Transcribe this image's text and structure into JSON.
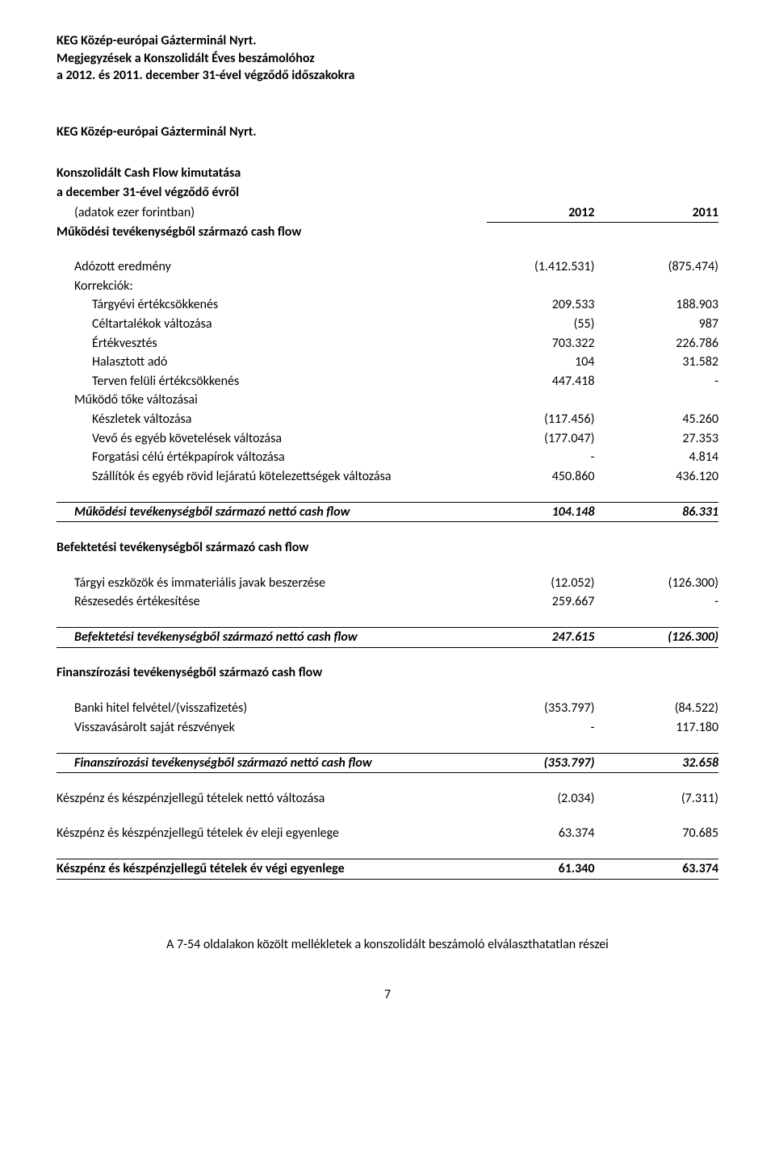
{
  "header": {
    "line1": "KEG Közép-európai Gázterminál Nyrt.",
    "line2": "Megjegyzések a Konszolidált Éves beszámolóhoz",
    "line3": "a 2012. és 2011. december 31-ével végződő időszakokra"
  },
  "title1": "KEG Közép-európai Gázterminál Nyrt.",
  "title2": "Konszolidált Cash Flow kimutatása",
  "subtitle2": "a december 31-ével végződő évről",
  "adatokNote": "(adatok ezer forintban)",
  "year2012": "2012",
  "year2011": "2011",
  "sections": {
    "operating": {
      "heading": "Működési tevékenységből származó cash flow",
      "rows": [
        {
          "label": "Adózott eredmény",
          "v2012": "(1.412.531)",
          "v2011": "(875.474)",
          "indent": 1
        },
        {
          "label": "Korrekciók:",
          "v2012": "",
          "v2011": "",
          "indent": 1
        },
        {
          "label": "Tárgyévi értékcsökkenés",
          "v2012": "209.533",
          "v2011": "188.903",
          "indent": 2
        },
        {
          "label": "Céltartalékok változása",
          "v2012": "(55)",
          "v2011": "987",
          "indent": 2
        },
        {
          "label": "Értékvesztés",
          "v2012": "703.322",
          "v2011": "226.786",
          "indent": 2
        },
        {
          "label": "Halasztott adó",
          "v2012": "104",
          "v2011": "31.582",
          "indent": 2
        },
        {
          "label": "Terven felüli értékcsökkenés",
          "v2012": "447.418",
          "v2011": "-",
          "indent": 2
        },
        {
          "label": "Működő tőke változásai",
          "v2012": "",
          "v2011": "",
          "indent": 1
        },
        {
          "label": "Készletek változása",
          "v2012": "(117.456)",
          "v2011": "45.260",
          "indent": 2
        },
        {
          "label": "Vevő és egyéb követelések változása",
          "v2012": "(177.047)",
          "v2011": "27.353",
          "indent": 2
        },
        {
          "label": "Forgatási célú értékpapírok változása",
          "v2012": "-",
          "v2011": "4.814",
          "indent": 2
        },
        {
          "label": "Szállítók és egyéb rövid lejáratú kötelezettségek változása",
          "v2012": "450.860",
          "v2011": "436.120",
          "indent": 2
        }
      ],
      "sum": {
        "label": "Működési tevékenységből származó nettó cash flow",
        "v2012": "104.148",
        "v2011": "86.331"
      }
    },
    "investing": {
      "heading": "Befektetési tevékenységből származó cash flow",
      "rows": [
        {
          "label": "Tárgyi eszközök és immateriális javak beszerzése",
          "v2012": "(12.052)",
          "v2011": "(126.300)",
          "indent": 1
        },
        {
          "label": "Részesedés értékesítése",
          "v2012": "259.667",
          "v2011": "-",
          "indent": 1
        }
      ],
      "sum": {
        "label": "Befektetési tevékenységből származó nettó cash flow",
        "v2012": "247.615",
        "v2011": "(126.300)"
      }
    },
    "financing": {
      "heading": "Finanszírozási tevékenységből származó cash flow",
      "rows": [
        {
          "label": "Banki hitel felvétel/(visszafizetés)",
          "v2012": "(353.797)",
          "v2011": "(84.522)",
          "indent": 1
        },
        {
          "label": "Visszavásárolt saját részvények",
          "v2012": "-",
          "v2011": "117.180",
          "indent": 1
        }
      ],
      "sum": {
        "label": "Finanszírozási tevékenységből származó nettó cash flow",
        "v2012": "(353.797)",
        "v2011": "32.658"
      }
    },
    "totals": {
      "netChange": {
        "label": "Készpénz és készpénzjellegű tételek nettó változása",
        "v2012": "(2.034)",
        "v2011": "(7.311)"
      },
      "opening": {
        "label": "Készpénz és készpénzjellegű tételek év eleji egyenlege",
        "v2012": "63.374",
        "v2011": "70.685"
      },
      "closing": {
        "label": "Készpénz és készpénzjellegű tételek év végi egyenlege",
        "v2012": "61.340",
        "v2011": "63.374"
      }
    }
  },
  "footerNote": "A 7-54 oldalakon közölt mellékletek a konszolidált beszámoló elválaszthatatlan részei",
  "pageNum": "7"
}
